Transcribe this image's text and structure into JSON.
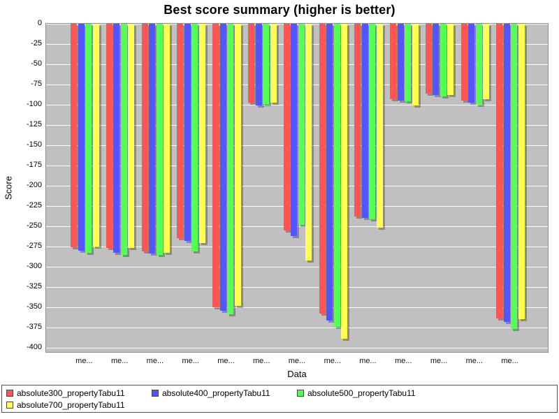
{
  "chart_data": {
    "type": "bar",
    "title": "Best score summary (higher is better)",
    "xlabel": "Data",
    "ylabel": "Score",
    "ymin": -400,
    "ymax": 0,
    "ytick_step": 25,
    "grid": true,
    "plot_bg": "#C0C0C0",
    "gridline_color": "#FFFFFF",
    "legend_position": "bottom",
    "categories": [
      "me...",
      "me...",
      "me...",
      "me...",
      "me...",
      "me...",
      "me...",
      "me...",
      "me...",
      "me...",
      "me...",
      "me...",
      "me..."
    ],
    "series": [
      {
        "name": "absolute300_propertyTabu11",
        "color": "#FF5555",
        "values": [
          -276,
          -277,
          -281,
          -265,
          -350,
          -97,
          -255,
          -358,
          -238,
          -93,
          -86,
          -95,
          -364
        ]
      },
      {
        "name": "absolute400_propertyTabu11",
        "color": "#5555FF",
        "values": [
          -280,
          -283,
          -284,
          -268,
          -354,
          -101,
          -262,
          -366,
          -240,
          -95,
          -88,
          -97,
          -368
        ]
      },
      {
        "name": "absolute500_propertyTabu11",
        "color": "#55FF55",
        "values": [
          -283,
          -285,
          -285,
          -281,
          -359,
          -99,
          -248,
          -374,
          -241,
          -96,
          -90,
          -100,
          -377
        ]
      },
      {
        "name": "absolute700_propertyTabu11",
        "color": "#FFFF55",
        "values": [
          -275,
          -277,
          -283,
          -271,
          -348,
          -97,
          -292,
          -389,
          -252,
          -101,
          -88,
          -93,
          -365
        ]
      }
    ]
  }
}
